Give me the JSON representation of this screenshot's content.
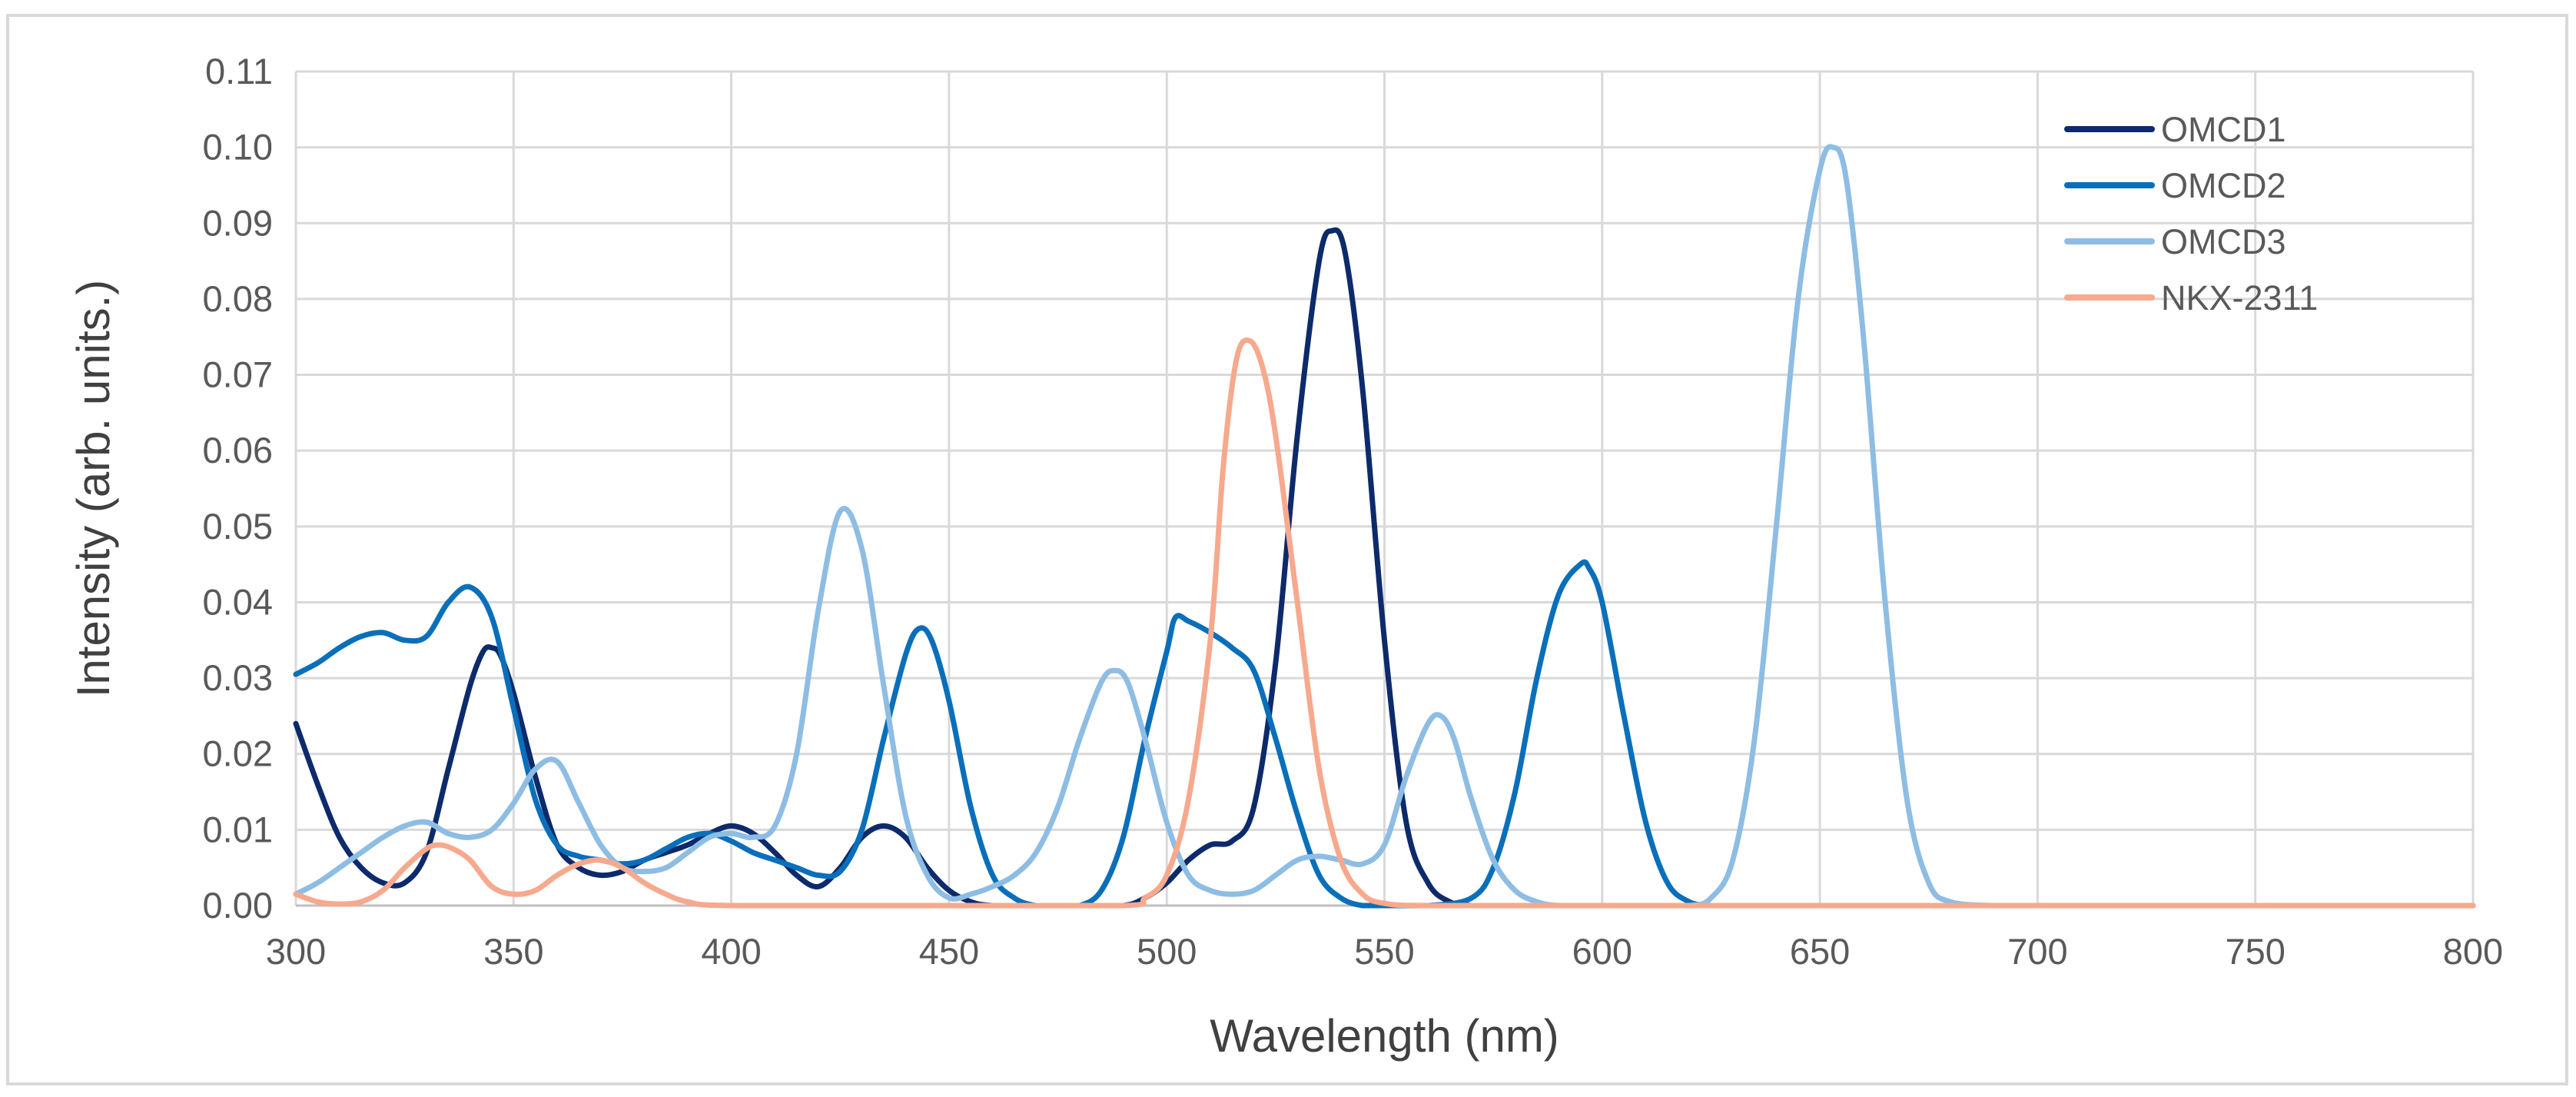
{
  "chart_data": {
    "type": "line",
    "title": "",
    "xlabel": "Wavelength (nm)",
    "ylabel": "Intensity (arb. units.)",
    "xlim": [
      300,
      800
    ],
    "ylim": [
      0,
      0.11
    ],
    "grid": true,
    "legend_position": "top-right",
    "x_ticks": [
      {
        "value": 300,
        "label": "300"
      },
      {
        "value": 350,
        "label": "350"
      },
      {
        "value": 400,
        "label": "400"
      },
      {
        "value": 450,
        "label": "450"
      },
      {
        "value": 500,
        "label": "500"
      },
      {
        "value": 550,
        "label": "550"
      },
      {
        "value": 600,
        "label": "600"
      },
      {
        "value": 650,
        "label": "650"
      },
      {
        "value": 700,
        "label": "700"
      },
      {
        "value": 750,
        "label": "750"
      },
      {
        "value": 800,
        "label": "800"
      }
    ],
    "y_ticks": [
      {
        "value": 0.0,
        "label": "0.00"
      },
      {
        "value": 0.01,
        "label": "0.01"
      },
      {
        "value": 0.02,
        "label": "0.02"
      },
      {
        "value": 0.03,
        "label": "0.03"
      },
      {
        "value": 0.04,
        "label": "0.04"
      },
      {
        "value": 0.05,
        "label": "0.05"
      },
      {
        "value": 0.06,
        "label": "0.06"
      },
      {
        "value": 0.07,
        "label": "0.07"
      },
      {
        "value": 0.08,
        "label": "0.08"
      },
      {
        "value": 0.09,
        "label": "0.09"
      },
      {
        "value": 0.1,
        "label": "0.10"
      },
      {
        "value": 0.11,
        "label": "0.11"
      }
    ],
    "series": [
      {
        "name": "OMCD1",
        "color": "#0d2a6b",
        "x": [
          300,
          305,
          310,
          315,
          320,
          325,
          330,
          335,
          340,
          343,
          345,
          347,
          350,
          355,
          360,
          365,
          370,
          375,
          380,
          385,
          390,
          395,
          400,
          405,
          410,
          415,
          420,
          425,
          430,
          435,
          440,
          445,
          450,
          455,
          460,
          470,
          480,
          490,
          495,
          500,
          505,
          510,
          515,
          520,
          525,
          530,
          535,
          538,
          541,
          545,
          550,
          555,
          560,
          565,
          570,
          580,
          600,
          650,
          700,
          750,
          800
        ],
        "values": [
          0.024,
          0.016,
          0.009,
          0.005,
          0.003,
          0.003,
          0.007,
          0.018,
          0.029,
          0.0335,
          0.034,
          0.033,
          0.028,
          0.017,
          0.008,
          0.005,
          0.004,
          0.0045,
          0.006,
          0.007,
          0.008,
          0.0095,
          0.0105,
          0.0095,
          0.007,
          0.004,
          0.0025,
          0.005,
          0.009,
          0.0105,
          0.009,
          0.005,
          0.002,
          0.0005,
          0.0,
          0.0,
          0.0,
          0.0,
          0.001,
          0.003,
          0.006,
          0.008,
          0.0085,
          0.013,
          0.032,
          0.062,
          0.085,
          0.089,
          0.086,
          0.068,
          0.035,
          0.011,
          0.003,
          0.0005,
          0.0,
          0.0,
          0.0,
          0.0,
          0.0,
          0.0,
          0.0
        ]
      },
      {
        "name": "OMCD2",
        "color": "#0a6fba",
        "x": [
          300,
          305,
          310,
          315,
          320,
          325,
          330,
          335,
          340,
          345,
          350,
          355,
          360,
          365,
          370,
          375,
          380,
          385,
          390,
          395,
          400,
          405,
          410,
          415,
          420,
          425,
          430,
          435,
          440,
          443,
          446,
          450,
          455,
          460,
          465,
          470,
          475,
          480,
          485,
          490,
          495,
          500,
          502,
          505,
          510,
          515,
          520,
          525,
          530,
          535,
          540,
          545,
          550,
          560,
          570,
          575,
          580,
          585,
          590,
          595,
          597,
          600,
          605,
          610,
          615,
          620,
          625,
          630,
          650,
          700,
          750,
          800
        ],
        "values": [
          0.0305,
          0.032,
          0.034,
          0.0355,
          0.036,
          0.035,
          0.0355,
          0.04,
          0.042,
          0.038,
          0.026,
          0.014,
          0.008,
          0.0065,
          0.006,
          0.0055,
          0.006,
          0.0075,
          0.009,
          0.0095,
          0.0085,
          0.007,
          0.006,
          0.005,
          0.004,
          0.0045,
          0.01,
          0.022,
          0.033,
          0.0365,
          0.035,
          0.027,
          0.013,
          0.004,
          0.001,
          0.0,
          0.0,
          0.0,
          0.002,
          0.009,
          0.022,
          0.0335,
          0.038,
          0.0375,
          0.036,
          0.034,
          0.031,
          0.022,
          0.012,
          0.004,
          0.001,
          0.0,
          0.0,
          0.0,
          0.001,
          0.005,
          0.015,
          0.03,
          0.041,
          0.045,
          0.0445,
          0.04,
          0.025,
          0.011,
          0.003,
          0.0005,
          0.0,
          0.0,
          0.0,
          0.0,
          0.0,
          0.0
        ]
      },
      {
        "name": "OMCD3",
        "color": "#8ebde4",
        "x": [
          300,
          305,
          310,
          315,
          320,
          325,
          330,
          335,
          340,
          345,
          350,
          355,
          360,
          365,
          370,
          375,
          380,
          385,
          390,
          395,
          400,
          405,
          410,
          415,
          420,
          425,
          430,
          435,
          440,
          445,
          450,
          455,
          460,
          465,
          470,
          475,
          480,
          485,
          488,
          491,
          495,
          500,
          505,
          510,
          515,
          520,
          525,
          530,
          535,
          540,
          545,
          550,
          555,
          560,
          563,
          566,
          570,
          575,
          580,
          585,
          590,
          600,
          610,
          620,
          625,
          630,
          635,
          640,
          645,
          650,
          653,
          656,
          660,
          665,
          670,
          675,
          680,
          690,
          700,
          750,
          800
        ],
        "values": [
          0.0015,
          0.003,
          0.005,
          0.007,
          0.009,
          0.0105,
          0.011,
          0.0095,
          0.009,
          0.01,
          0.0135,
          0.018,
          0.019,
          0.0135,
          0.008,
          0.005,
          0.0045,
          0.005,
          0.007,
          0.009,
          0.0095,
          0.009,
          0.0105,
          0.02,
          0.039,
          0.052,
          0.047,
          0.029,
          0.012,
          0.004,
          0.001,
          0.0015,
          0.0025,
          0.004,
          0.007,
          0.013,
          0.022,
          0.0295,
          0.031,
          0.0295,
          0.022,
          0.011,
          0.004,
          0.002,
          0.0015,
          0.002,
          0.004,
          0.006,
          0.0065,
          0.006,
          0.0055,
          0.008,
          0.017,
          0.024,
          0.025,
          0.022,
          0.014,
          0.006,
          0.002,
          0.0005,
          0.0,
          0.0,
          0.0,
          0.0,
          0.001,
          0.006,
          0.022,
          0.05,
          0.08,
          0.097,
          0.1,
          0.096,
          0.075,
          0.04,
          0.014,
          0.003,
          0.0005,
          0.0,
          0.0,
          0.0,
          0.0
        ]
      },
      {
        "name": "NKX-2311",
        "color": "#f7a98d",
        "x": [
          300,
          305,
          310,
          315,
          320,
          325,
          330,
          333,
          336,
          340,
          345,
          350,
          355,
          360,
          365,
          370,
          375,
          380,
          385,
          390,
          400,
          450,
          490,
          495,
          500,
          505,
          510,
          513,
          516,
          519,
          522,
          525,
          530,
          535,
          540,
          545,
          550,
          560,
          600,
          650,
          700,
          750,
          800
        ],
        "values": [
          0.0015,
          0.0005,
          0.0002,
          0.0005,
          0.002,
          0.005,
          0.0075,
          0.008,
          0.0075,
          0.006,
          0.0025,
          0.0015,
          0.002,
          0.004,
          0.0055,
          0.006,
          0.005,
          0.003,
          0.0015,
          0.0005,
          0.0,
          0.0,
          0.0,
          0.001,
          0.004,
          0.014,
          0.035,
          0.058,
          0.072,
          0.0745,
          0.071,
          0.062,
          0.04,
          0.018,
          0.006,
          0.0015,
          0.0003,
          0.0,
          0.0,
          0.0,
          0.0,
          0.0,
          0.0
        ]
      }
    ]
  }
}
